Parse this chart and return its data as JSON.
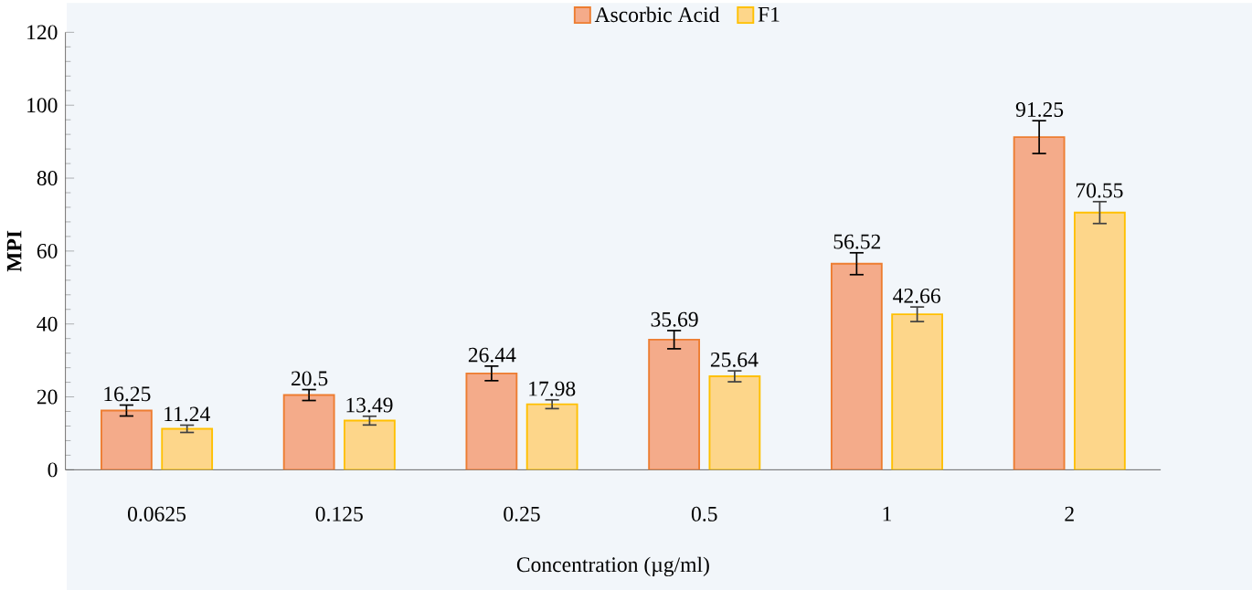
{
  "chart_data": {
    "type": "bar",
    "xlabel": "Concentration (µg/ml)",
    "ylabel": "MPI",
    "categories": [
      "0.0625",
      "0.125",
      "0.25",
      "0.5",
      "1",
      "2"
    ],
    "series": [
      {
        "name": "Ascorbic Acid",
        "color": "#f4ab8a",
        "values": [
          16.25,
          20.5,
          26.44,
          35.69,
          56.52,
          91.25
        ],
        "errors": [
          1.5,
          1.5,
          2,
          2.5,
          3,
          4.5
        ]
      },
      {
        "name": "F1",
        "color": "#fdd68a",
        "values": [
          11.24,
          13.49,
          17.98,
          25.64,
          42.66,
          70.55
        ],
        "errors": [
          1,
          1.2,
          1.2,
          1.5,
          2,
          3
        ]
      }
    ],
    "ylim": [
      0,
      120
    ],
    "yticks": [
      0,
      20,
      40,
      60,
      80,
      100,
      120
    ],
    "data_labels": true,
    "legend": "top"
  }
}
